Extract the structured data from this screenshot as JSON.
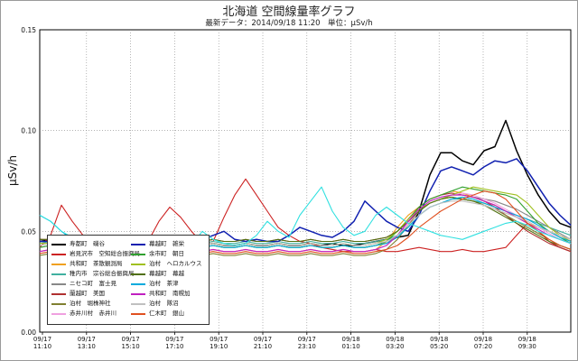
{
  "chart_data": {
    "type": "line",
    "title": "北海道 空間線量率グラフ",
    "subtitle": "最新データ：2014/09/18 11:20　単位：μSv/h",
    "ylabel": "μSv/h",
    "ylim": [
      0,
      0.15
    ],
    "yticks": [
      "0.00",
      "0.05",
      "0.10",
      "0.15"
    ],
    "grid": true,
    "xticks": [
      {
        "date": "09/17",
        "time": "11:10"
      },
      {
        "date": "09/17",
        "time": "13:10"
      },
      {
        "date": "09/17",
        "time": "15:10"
      },
      {
        "date": "09/17",
        "time": "17:10"
      },
      {
        "date": "09/17",
        "time": "19:10"
      },
      {
        "date": "09/17",
        "time": "21:10"
      },
      {
        "date": "09/17",
        "time": "23:10"
      },
      {
        "date": "09/18",
        "time": "01:10"
      },
      {
        "date": "09/18",
        "time": "03:20"
      },
      {
        "date": "09/18",
        "time": "05:20"
      },
      {
        "date": "09/18",
        "time": "07:20"
      },
      {
        "date": "09/18",
        "time": "09:30"
      }
    ],
    "legend_position": "bottom-left",
    "series": [
      {
        "name": "寿都町　磯谷",
        "color": "#000000",
        "values": [
          0.046,
          0.045,
          0.044,
          0.044,
          0.043,
          0.043,
          0.044,
          0.043,
          0.044,
          0.043,
          0.044,
          0.043,
          0.043,
          0.044,
          0.043,
          0.043,
          0.044,
          0.043,
          0.043,
          0.044,
          0.043,
          0.043,
          0.044,
          0.043,
          0.043,
          0.044,
          0.043,
          0.044,
          0.043,
          0.043,
          0.044,
          0.045,
          0.046,
          0.047,
          0.048,
          0.06,
          0.078,
          0.089,
          0.089,
          0.085,
          0.083,
          0.09,
          0.092,
          0.105,
          0.09,
          0.078,
          0.068,
          0.06,
          0.054,
          0.052
        ]
      },
      {
        "name": "岩見沢市　空知総合振興局",
        "color": "#cc2222",
        "values": [
          0.042,
          0.048,
          0.063,
          0.055,
          0.048,
          0.044,
          0.042,
          0.04,
          0.039,
          0.04,
          0.045,
          0.055,
          0.062,
          0.057,
          0.05,
          0.044,
          0.045,
          0.057,
          0.068,
          0.076,
          0.068,
          0.06,
          0.052,
          0.048,
          0.045,
          0.044,
          0.042,
          0.041,
          0.04,
          0.04,
          0.04,
          0.041,
          0.04,
          0.04,
          0.041,
          0.042,
          0.041,
          0.04,
          0.04,
          0.041,
          0.04,
          0.04,
          0.041,
          0.042,
          0.048,
          0.054,
          0.05,
          0.045,
          0.042,
          0.04
        ]
      },
      {
        "name": "共和町　茶散観測局",
        "color": "#f0a020",
        "values": [
          0.04,
          0.041,
          0.04,
          0.04,
          0.041,
          0.04,
          0.04,
          0.041,
          0.04,
          0.04,
          0.041,
          0.04,
          0.04,
          0.041,
          0.04,
          0.04,
          0.041,
          0.04,
          0.04,
          0.041,
          0.04,
          0.04,
          0.041,
          0.04,
          0.04,
          0.041,
          0.04,
          0.04,
          0.041,
          0.04,
          0.04,
          0.041,
          0.045,
          0.052,
          0.058,
          0.062,
          0.066,
          0.068,
          0.07,
          0.069,
          0.067,
          0.065,
          0.063,
          0.06,
          0.057,
          0.054,
          0.052,
          0.05,
          0.048,
          0.046
        ]
      },
      {
        "name": "稚内市　宗谷総合振興局",
        "color": "#40b0a0",
        "values": [
          0.044,
          0.045,
          0.044,
          0.044,
          0.045,
          0.044,
          0.044,
          0.045,
          0.044,
          0.044,
          0.045,
          0.044,
          0.044,
          0.045,
          0.044,
          0.044,
          0.045,
          0.044,
          0.044,
          0.045,
          0.044,
          0.044,
          0.045,
          0.044,
          0.044,
          0.045,
          0.044,
          0.044,
          0.045,
          0.044,
          0.044,
          0.045,
          0.046,
          0.048,
          0.052,
          0.058,
          0.062,
          0.064,
          0.066,
          0.066,
          0.065,
          0.064,
          0.062,
          0.06,
          0.058,
          0.056,
          0.054,
          0.052,
          0.05,
          0.048
        ]
      },
      {
        "name": "ニセコ町　富士見",
        "color": "#888888",
        "values": [
          0.042,
          0.043,
          0.042,
          0.042,
          0.043,
          0.042,
          0.042,
          0.043,
          0.042,
          0.042,
          0.043,
          0.042,
          0.042,
          0.043,
          0.042,
          0.042,
          0.043,
          0.042,
          0.042,
          0.043,
          0.042,
          0.042,
          0.043,
          0.042,
          0.042,
          0.043,
          0.042,
          0.042,
          0.043,
          0.042,
          0.042,
          0.043,
          0.044,
          0.048,
          0.055,
          0.06,
          0.064,
          0.066,
          0.068,
          0.068,
          0.067,
          0.066,
          0.065,
          0.063,
          0.061,
          0.058,
          0.055,
          0.052,
          0.049,
          0.046
        ]
      },
      {
        "name": "蘭越町　美国",
        "color": "#b03030",
        "values": [
          0.046,
          0.046,
          0.045,
          0.045,
          0.046,
          0.045,
          0.045,
          0.046,
          0.045,
          0.045,
          0.046,
          0.045,
          0.045,
          0.046,
          0.045,
          0.045,
          0.046,
          0.045,
          0.045,
          0.046,
          0.045,
          0.045,
          0.046,
          0.045,
          0.045,
          0.046,
          0.045,
          0.045,
          0.046,
          0.045,
          0.045,
          0.046,
          0.047,
          0.05,
          0.056,
          0.062,
          0.066,
          0.068,
          0.069,
          0.068,
          0.067,
          0.065,
          0.062,
          0.058,
          0.054,
          0.05,
          0.047,
          0.044,
          0.042,
          0.04
        ]
      },
      {
        "name": "泊村　堀株神社",
        "color": "#808030",
        "values": [
          0.038,
          0.039,
          0.038,
          0.038,
          0.039,
          0.038,
          0.038,
          0.039,
          0.038,
          0.038,
          0.039,
          0.038,
          0.038,
          0.039,
          0.038,
          0.038,
          0.039,
          0.038,
          0.038,
          0.039,
          0.038,
          0.038,
          0.039,
          0.038,
          0.038,
          0.039,
          0.038,
          0.038,
          0.039,
          0.038,
          0.038,
          0.039,
          0.041,
          0.046,
          0.053,
          0.06,
          0.064,
          0.066,
          0.067,
          0.066,
          0.065,
          0.063,
          0.061,
          0.058,
          0.055,
          0.052,
          0.049,
          0.046,
          0.043,
          0.041
        ]
      },
      {
        "name": "赤井川村　赤井川",
        "color": "#f0a0e0",
        "values": [
          0.04,
          0.041,
          0.04,
          0.04,
          0.041,
          0.04,
          0.04,
          0.041,
          0.04,
          0.04,
          0.041,
          0.04,
          0.04,
          0.041,
          0.04,
          0.04,
          0.041,
          0.04,
          0.04,
          0.041,
          0.04,
          0.04,
          0.041,
          0.04,
          0.04,
          0.041,
          0.04,
          0.04,
          0.041,
          0.04,
          0.04,
          0.041,
          0.043,
          0.048,
          0.054,
          0.06,
          0.064,
          0.066,
          0.068,
          0.069,
          0.068,
          0.066,
          0.064,
          0.061,
          0.058,
          0.055,
          0.052,
          0.049,
          0.046,
          0.044
        ]
      },
      {
        "name": "幕越町　雑栄",
        "color": "#1020b0",
        "values": [
          0.045,
          0.045,
          0.044,
          0.044,
          0.045,
          0.044,
          0.044,
          0.045,
          0.044,
          0.044,
          0.045,
          0.044,
          0.044,
          0.045,
          0.044,
          0.046,
          0.048,
          0.05,
          0.046,
          0.045,
          0.046,
          0.045,
          0.045,
          0.048,
          0.052,
          0.05,
          0.048,
          0.047,
          0.05,
          0.055,
          0.065,
          0.06,
          0.055,
          0.052,
          0.05,
          0.058,
          0.07,
          0.08,
          0.082,
          0.08,
          0.078,
          0.082,
          0.085,
          0.084,
          0.086,
          0.08,
          0.072,
          0.064,
          0.058,
          0.053
        ]
      },
      {
        "name": "余市町　朝日",
        "color": "#30a030",
        "values": [
          0.042,
          0.043,
          0.042,
          0.042,
          0.043,
          0.042,
          0.042,
          0.043,
          0.042,
          0.042,
          0.043,
          0.042,
          0.042,
          0.043,
          0.042,
          0.042,
          0.043,
          0.042,
          0.042,
          0.043,
          0.042,
          0.042,
          0.043,
          0.042,
          0.042,
          0.043,
          0.042,
          0.042,
          0.043,
          0.042,
          0.042,
          0.043,
          0.045,
          0.05,
          0.056,
          0.062,
          0.066,
          0.068,
          0.07,
          0.072,
          0.071,
          0.07,
          0.069,
          0.068,
          0.066,
          0.06,
          0.054,
          0.05,
          0.047,
          0.044
        ]
      },
      {
        "name": "泊村　ヘロカルウス",
        "color": "#a0c020",
        "values": [
          0.044,
          0.044,
          0.043,
          0.043,
          0.044,
          0.043,
          0.043,
          0.044,
          0.043,
          0.043,
          0.044,
          0.043,
          0.043,
          0.044,
          0.043,
          0.043,
          0.044,
          0.043,
          0.043,
          0.044,
          0.043,
          0.043,
          0.044,
          0.043,
          0.043,
          0.044,
          0.043,
          0.043,
          0.044,
          0.043,
          0.043,
          0.044,
          0.046,
          0.05,
          0.056,
          0.061,
          0.064,
          0.066,
          0.068,
          0.07,
          0.072,
          0.071,
          0.07,
          0.069,
          0.068,
          0.064,
          0.058,
          0.052,
          0.048,
          0.045
        ]
      },
      {
        "name": "幕越町　幕越",
        "color": "#507010",
        "values": [
          0.046,
          0.046,
          0.045,
          0.045,
          0.046,
          0.045,
          0.045,
          0.046,
          0.045,
          0.045,
          0.046,
          0.045,
          0.045,
          0.046,
          0.045,
          0.045,
          0.046,
          0.045,
          0.045,
          0.046,
          0.045,
          0.045,
          0.046,
          0.045,
          0.045,
          0.046,
          0.045,
          0.045,
          0.046,
          0.045,
          0.045,
          0.046,
          0.047,
          0.05,
          0.055,
          0.06,
          0.064,
          0.066,
          0.067,
          0.066,
          0.065,
          0.063,
          0.06,
          0.057,
          0.054,
          0.051,
          0.048,
          0.045,
          0.043,
          0.041
        ]
      },
      {
        "name": "泊村　茶津",
        "color": "#00aadd",
        "values": [
          0.058,
          0.055,
          0.05,
          0.046,
          0.044,
          0.043,
          0.042,
          0.043,
          0.042,
          0.042,
          0.043,
          0.042,
          0.042,
          0.043,
          0.042,
          0.042,
          0.043,
          0.042,
          0.042,
          0.043,
          0.042,
          0.042,
          0.043,
          0.042,
          0.042,
          0.043,
          0.042,
          0.042,
          0.043,
          0.042,
          0.042,
          0.043,
          0.044,
          0.047,
          0.052,
          0.058,
          0.062,
          0.064,
          0.066,
          0.067,
          0.066,
          0.064,
          0.062,
          0.06,
          0.058,
          0.056,
          0.053,
          0.05,
          0.047,
          0.045
        ]
      },
      {
        "name": "共和町　南幌加",
        "color": "#c020c0",
        "values": [
          0.04,
          0.041,
          0.04,
          0.04,
          0.041,
          0.04,
          0.04,
          0.041,
          0.04,
          0.04,
          0.041,
          0.04,
          0.04,
          0.041,
          0.04,
          0.04,
          0.041,
          0.04,
          0.04,
          0.041,
          0.04,
          0.04,
          0.041,
          0.04,
          0.04,
          0.041,
          0.04,
          0.04,
          0.041,
          0.04,
          0.04,
          0.041,
          0.043,
          0.048,
          0.055,
          0.061,
          0.065,
          0.067,
          0.068,
          0.068,
          0.067,
          0.065,
          0.063,
          0.06,
          0.057,
          0.054,
          0.051,
          0.048,
          0.046,
          0.044
        ]
      },
      {
        "name": "泊村　隊沼",
        "color": "#c0c0c0",
        "values": [
          0.043,
          0.044,
          0.043,
          0.043,
          0.044,
          0.043,
          0.043,
          0.044,
          0.043,
          0.043,
          0.044,
          0.043,
          0.043,
          0.044,
          0.043,
          0.043,
          0.044,
          0.043,
          0.043,
          0.044,
          0.043,
          0.043,
          0.044,
          0.043,
          0.043,
          0.044,
          0.043,
          0.043,
          0.044,
          0.043,
          0.043,
          0.044,
          0.045,
          0.048,
          0.053,
          0.058,
          0.062,
          0.064,
          0.065,
          0.065,
          0.064,
          0.063,
          0.061,
          0.059,
          0.057,
          0.055,
          0.052,
          0.05,
          0.048,
          0.046
        ]
      },
      {
        "name": "仁木町　銀山",
        "color": "#e05020",
        "values": [
          0.039,
          0.04,
          0.039,
          0.039,
          0.04,
          0.039,
          0.039,
          0.04,
          0.039,
          0.039,
          0.04,
          0.039,
          0.039,
          0.04,
          0.039,
          0.039,
          0.04,
          0.039,
          0.039,
          0.04,
          0.039,
          0.039,
          0.04,
          0.039,
          0.039,
          0.04,
          0.039,
          0.039,
          0.04,
          0.039,
          0.039,
          0.04,
          0.041,
          0.043,
          0.047,
          0.052,
          0.056,
          0.06,
          0.063,
          0.066,
          0.068,
          0.07,
          0.069,
          0.066,
          0.06,
          0.054,
          0.05,
          0.046,
          0.043,
          0.041
        ]
      },
      {
        "name": "",
        "color": "#30e0e0",
        "values": [
          0.058,
          0.055,
          0.05,
          0.047,
          0.045,
          0.044,
          0.043,
          0.044,
          0.043,
          0.043,
          0.044,
          0.043,
          0.043,
          0.044,
          0.043,
          0.05,
          0.046,
          0.044,
          0.043,
          0.044,
          0.048,
          0.055,
          0.05,
          0.047,
          0.058,
          0.065,
          0.072,
          0.06,
          0.052,
          0.048,
          0.05,
          0.058,
          0.062,
          0.058,
          0.054,
          0.052,
          0.05,
          0.048,
          0.047,
          0.046,
          0.048,
          0.05,
          0.052,
          0.054,
          0.055,
          0.053,
          0.05,
          0.048,
          0.046,
          0.044
        ]
      }
    ]
  }
}
